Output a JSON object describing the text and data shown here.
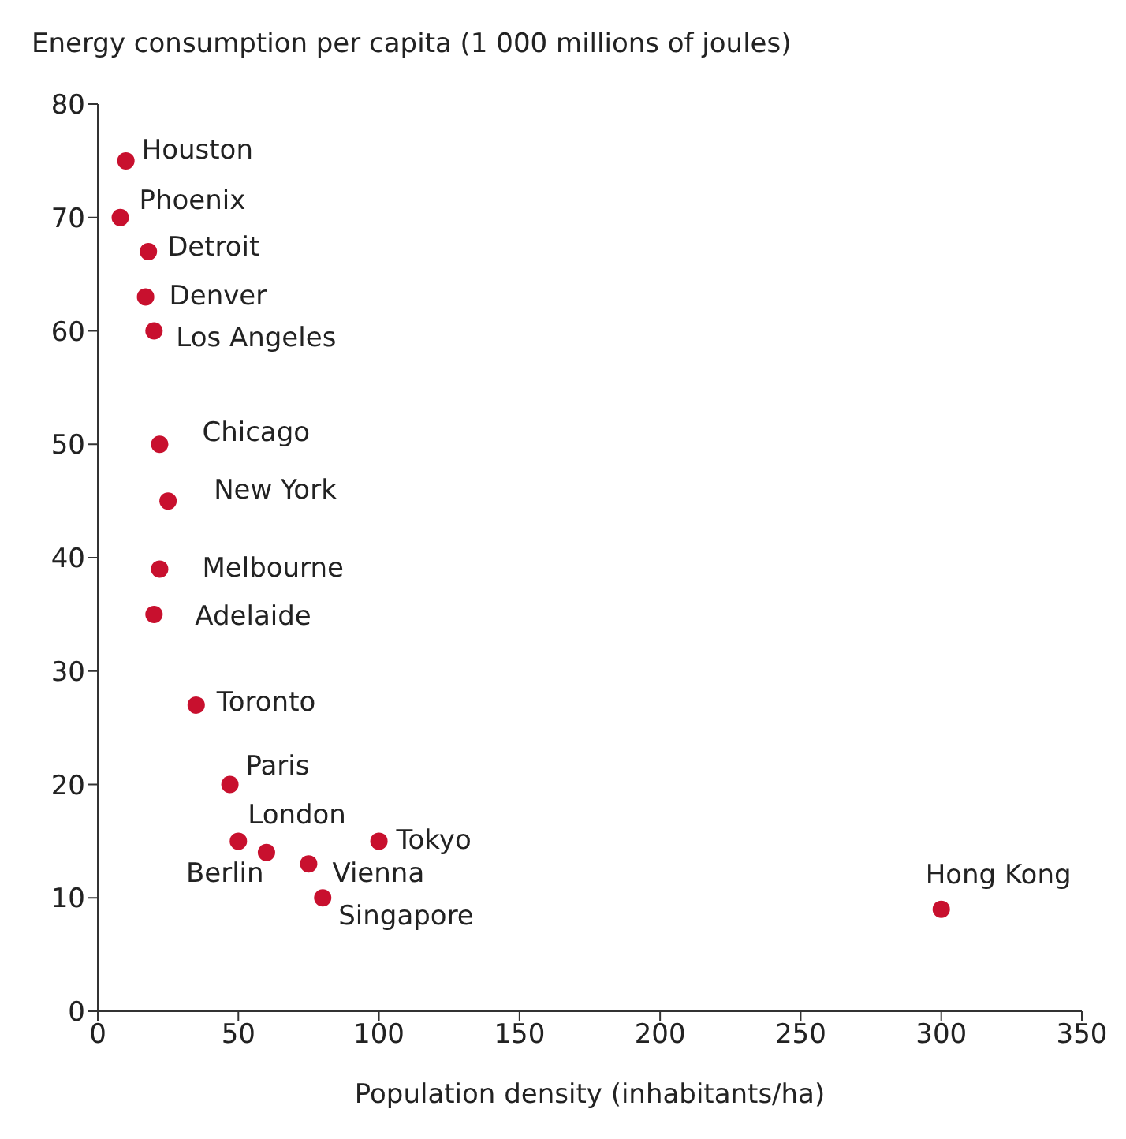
{
  "chart_data": {
    "type": "scatter",
    "ylabel": "Energy consumption per capita (1 000 millions of joules)",
    "xlabel": "Population density (inhabitants/ha)",
    "x": [
      10,
      8,
      18,
      17,
      20,
      22,
      25,
      22,
      20,
      35,
      47,
      50,
      60,
      75,
      100,
      80,
      300
    ],
    "series": [
      {
        "color": "#c8102e",
        "values": [
          75,
          70,
          67,
          63,
          60,
          50,
          45,
          39,
          35,
          27,
          20,
          15,
          14,
          13,
          15,
          10,
          9
        ]
      }
    ],
    "annotations": [
      {
        "text": "Houston",
        "x": 10,
        "y": 75
      },
      {
        "text": "Phoenix",
        "x": 8,
        "y": 70
      },
      {
        "text": "Detroit",
        "x": 18,
        "y": 67
      },
      {
        "text": "Denver",
        "x": 17,
        "y": 63
      },
      {
        "text": "Los Angeles",
        "x": 20,
        "y": 60
      },
      {
        "text": "Chicago",
        "x": 22,
        "y": 50
      },
      {
        "text": "New York",
        "x": 25,
        "y": 45
      },
      {
        "text": "Melbourne",
        "x": 22,
        "y": 39
      },
      {
        "text": "Adelaide",
        "x": 20,
        "y": 35
      },
      {
        "text": "Toronto",
        "x": 35,
        "y": 27
      },
      {
        "text": "Paris",
        "x": 47,
        "y": 20
      },
      {
        "text": "London",
        "x": 50,
        "y": 15
      },
      {
        "text": "Berlin",
        "x": 60,
        "y": 14
      },
      {
        "text": "Vienna",
        "x": 75,
        "y": 13
      },
      {
        "text": "Tokyo",
        "x": 100,
        "y": 15
      },
      {
        "text": "Singapore",
        "x": 80,
        "y": 10
      },
      {
        "text": "Hong Kong",
        "x": 300,
        "y": 9
      }
    ],
    "xlim": [
      0,
      350
    ],
    "xticks": [
      0,
      50,
      100,
      150,
      200,
      250,
      300,
      350
    ],
    "ylim": [
      0,
      80
    ],
    "yticks": [
      0,
      10,
      20,
      30,
      40,
      50,
      60,
      70,
      80
    ],
    "grid": false,
    "legend": false,
    "marker": "circle"
  }
}
